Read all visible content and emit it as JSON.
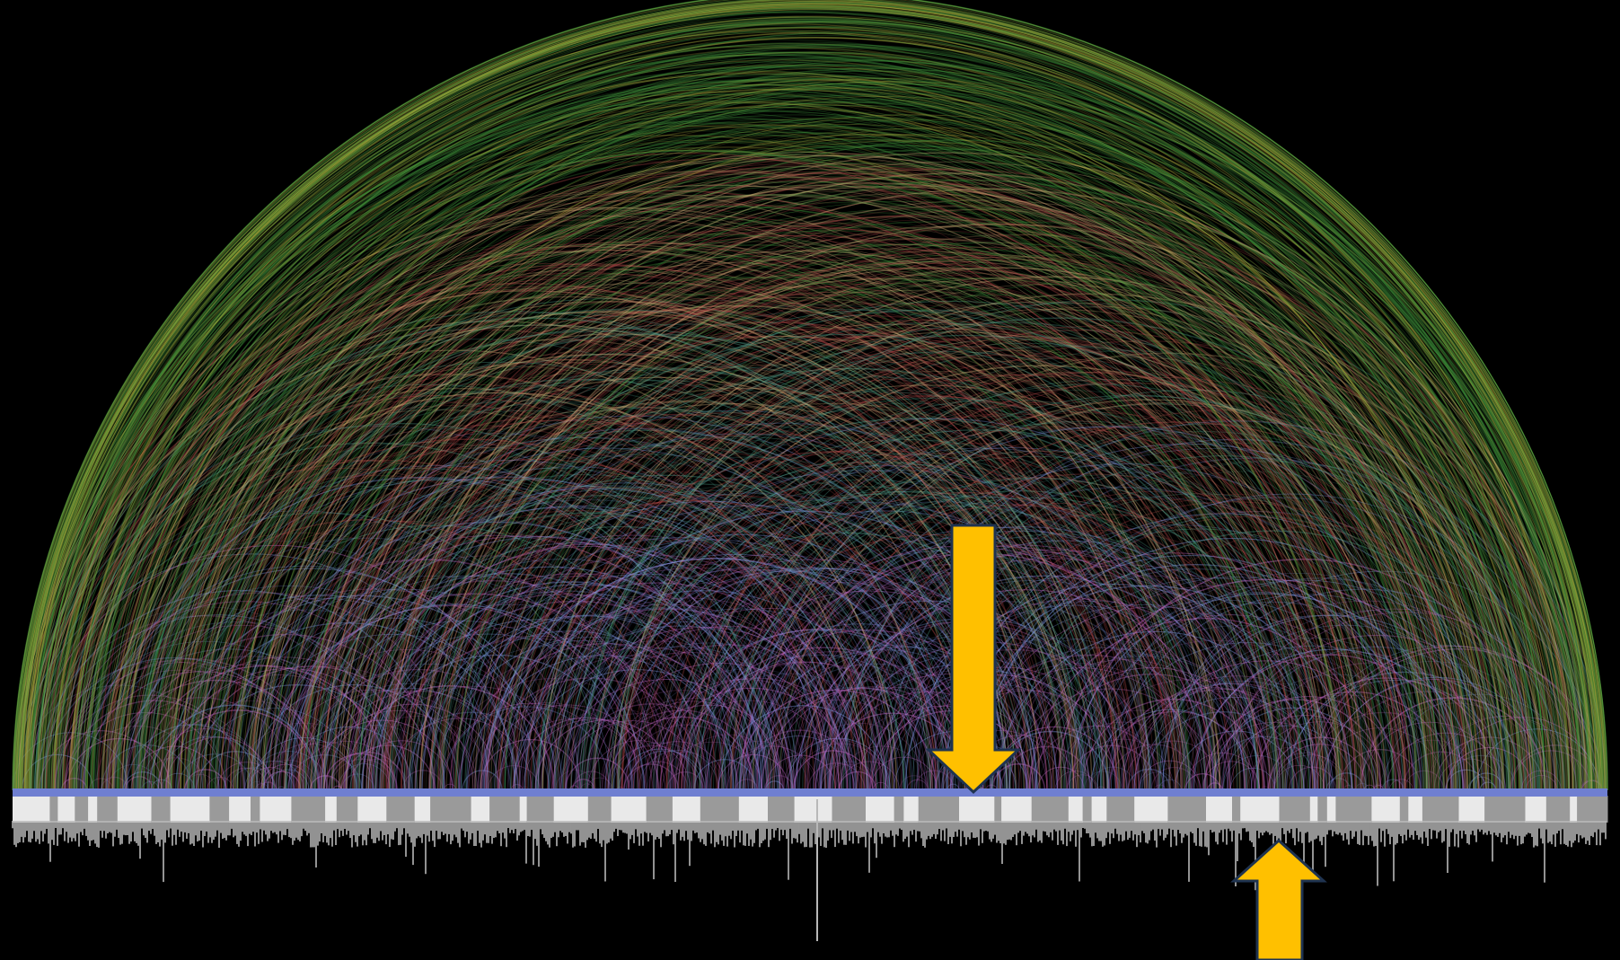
{
  "colors": {
    "background": "#000000",
    "axis_band": "#6f7fd1",
    "segment_light": "#e9e9e9",
    "segment_dark": "#9a9a9a",
    "histogram": "#b8b8b8",
    "arrow_fill": "#ffc000",
    "arrow_outline": "#1f3350",
    "arc_palette": [
      "#c96ad0",
      "#7f97e6",
      "#4f9f8a",
      "#d4b27a",
      "#b84a4a",
      "#3f8f3a",
      "#a3a33a"
    ]
  },
  "diagram": {
    "type": "arc-diagram",
    "segment_count": 66,
    "callouts": [
      {
        "name": "down-arrow",
        "direction": "down",
        "color": "#ffc000"
      },
      {
        "name": "up-arrow",
        "direction": "up",
        "color": "#ffc000"
      }
    ]
  }
}
